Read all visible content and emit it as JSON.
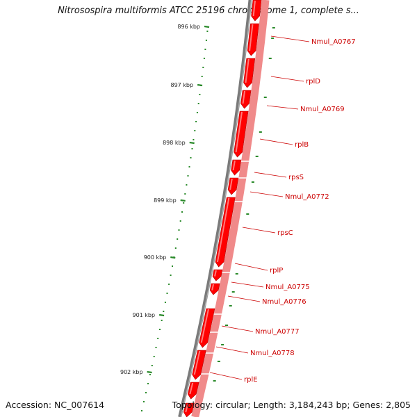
{
  "title": "Nitrosospira multiformis ATCC 25196 chromosome 1, complete s...",
  "footer": {
    "accession": "Accession: NC_007614",
    "summary": "Topology: circular; Length: 3,184,243 bp; Genes: 2,805"
  },
  "colors": {
    "backbone": "#7a7a7a",
    "gene_fill": "#ff0000",
    "gene_track_light": "#f08a8a",
    "tick": "#2a8a2a",
    "label": "#cc0000"
  },
  "scale_ticks": [
    "896 kbp",
    "897 kbp",
    "898 kbp",
    "899 kbp",
    "900 kbp",
    "901 kbp",
    "902 kbp"
  ],
  "gene_labels": [
    "Nmul_A0767",
    "rplD",
    "Nmul_A0769",
    "rplB",
    "rpsS",
    "Nmul_A0772",
    "rpsC",
    "rplP",
    "Nmul_A0775",
    "Nmul_A0776",
    "Nmul_A0777",
    "Nmul_A0778",
    "rplE"
  ]
}
